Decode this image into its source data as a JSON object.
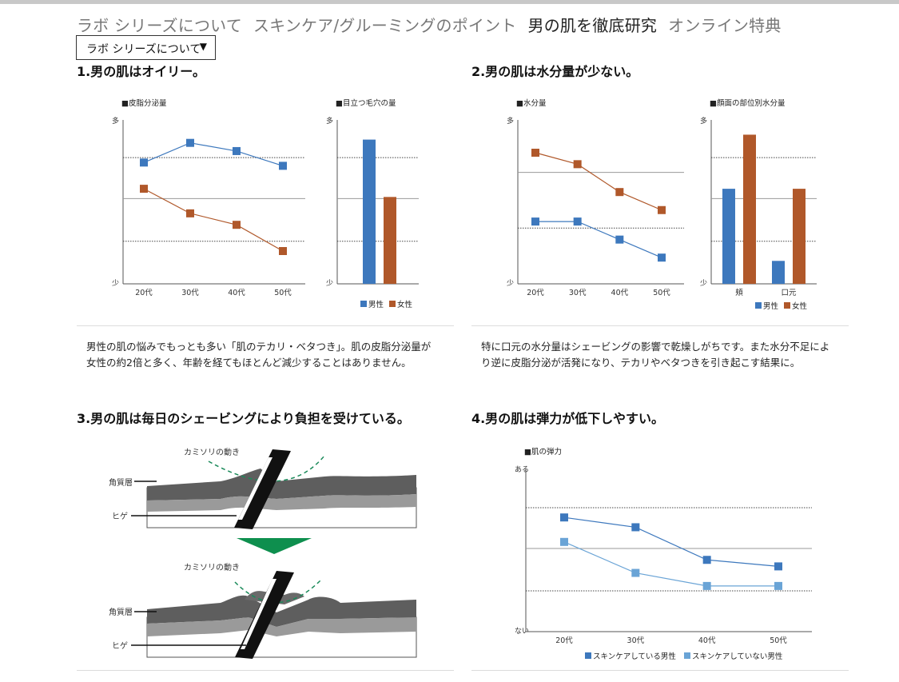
{
  "nav": {
    "items": [
      "ラボ シリーズについて",
      "スキンケア/グルーミングのポイント",
      "男の肌を徹底研究",
      "オンライン特典"
    ],
    "active_index": 2
  },
  "dropdown": {
    "selected": "ラボ シリーズについて"
  },
  "colors": {
    "male": "#3d78bd",
    "female": "#b0582a",
    "male_light": "#6aa4d6",
    "green": "#0e8f4e"
  },
  "section1": {
    "title": "1.男の肌はオイリー。",
    "text_line1": "男性の肌の悩みでもっとも多い「肌のテカリ・ベタつき」。肌の皮脂分泌量が",
    "text_line2": "女性の約2倍と多く、年齢を経てもほとんど減少することはありません。"
  },
  "section2": {
    "title": "2.男の肌は水分量が少ない。",
    "text_line1": "特に口元の水分量はシェービングの影響で乾燥しがちです。また水分不足によ",
    "text_line2": "り逆に皮脂分泌が活発になり、テカリやベタつきを引き起こす結果に。"
  },
  "section3": {
    "title": "3.男の肌は毎日のシェービングにより負担を受けている。",
    "razor_label": "カミソリの動き",
    "layer_label": "角質層",
    "beard_label": "ヒゲ"
  },
  "section4": {
    "title": "4.男の肌は弾力が低下しやすい。"
  },
  "chart_data": [
    {
      "type": "line",
      "title": "■皮脂分泌量",
      "categories": [
        "20代",
        "30代",
        "40代",
        "50代"
      ],
      "y_top_label": "多",
      "y_bottom_label": "少",
      "ylim": [
        0,
        100
      ],
      "series": [
        {
          "name": "男性",
          "values": [
            74,
            86,
            81,
            72
          ]
        },
        {
          "name": "女性",
          "values": [
            58,
            43,
            36,
            20
          ]
        }
      ]
    },
    {
      "type": "bar",
      "title": "■目立つ毛穴の量",
      "categories": [
        ""
      ],
      "y_top_label": "多",
      "y_bottom_label": "少",
      "ylim": [
        0,
        100
      ],
      "series": [
        {
          "name": "男性",
          "values": [
            88
          ]
        },
        {
          "name": "女性",
          "values": [
            53
          ]
        }
      ],
      "legend": [
        "男性",
        "女性"
      ]
    },
    {
      "type": "line",
      "title": "■水分量",
      "categories": [
        "20代",
        "30代",
        "40代",
        "50代"
      ],
      "y_top_label": "多",
      "y_bottom_label": "少",
      "ylim": [
        0,
        100
      ],
      "series": [
        {
          "name": "女性",
          "values": [
            80,
            73,
            56,
            45
          ]
        },
        {
          "name": "男性",
          "values": [
            38,
            38,
            27,
            16
          ]
        }
      ]
    },
    {
      "type": "bar",
      "title": "■顔面の部位別水分量",
      "categories": [
        "頬",
        "口元"
      ],
      "y_top_label": "多",
      "y_bottom_label": "少",
      "ylim": [
        0,
        100
      ],
      "series": [
        {
          "name": "男性",
          "values": [
            58,
            14
          ]
        },
        {
          "name": "女性",
          "values": [
            91,
            58
          ]
        }
      ],
      "legend": [
        "男性",
        "女性"
      ]
    },
    {
      "type": "line",
      "title": "■肌の弾力",
      "categories": [
        "20代",
        "30代",
        "40代",
        "50代"
      ],
      "y_top_label": "ある",
      "y_bottom_label": "ない",
      "ylim": [
        0,
        100
      ],
      "series": [
        {
          "name": "スキンケアしている男性",
          "values": [
            70,
            64,
            44,
            40
          ]
        },
        {
          "name": "スキンケアしていない男性",
          "values": [
            55,
            36,
            28,
            28
          ]
        }
      ],
      "legend": [
        "スキンケアしている男性",
        "スキンケアしていない男性"
      ]
    }
  ]
}
